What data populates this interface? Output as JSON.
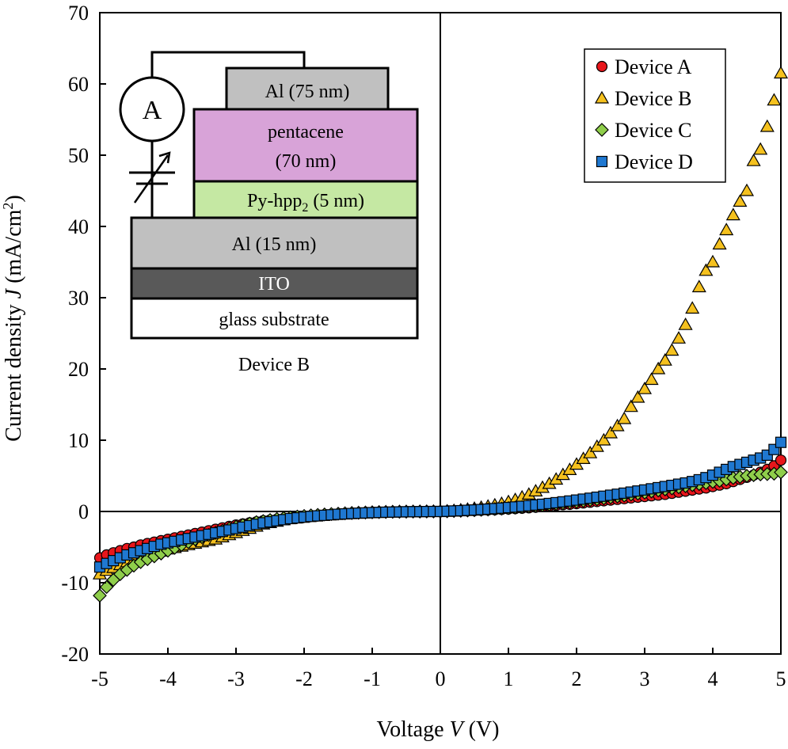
{
  "chart_data": {
    "type": "scatter",
    "xlabel_parts": [
      "Voltage ",
      "V",
      " (V)"
    ],
    "ylabel_parts": [
      "Current density ",
      "J",
      " (mA/cm",
      "2",
      ")"
    ],
    "xlim": [
      -5,
      5
    ],
    "ylim": [
      -20,
      70
    ],
    "xticks": [
      -5,
      -4,
      -3,
      -2,
      -1,
      0,
      1,
      2,
      3,
      4,
      5
    ],
    "yticks": [
      -20,
      -10,
      0,
      10,
      20,
      30,
      40,
      50,
      60,
      70
    ],
    "legend_position": "top-right",
    "series": [
      {
        "name": "Device A",
        "marker": "circle",
        "color": "#e8161b",
        "x": [
          -5,
          -4.9,
          -4.8,
          -4.7,
          -4.6,
          -4.5,
          -4.4,
          -4.3,
          -4.2,
          -4.1,
          -4,
          -3.9,
          -3.8,
          -3.7,
          -3.6,
          -3.5,
          -3.4,
          -3.3,
          -3.2,
          -3.1,
          -3,
          -2.9,
          -2.8,
          -2.7,
          -2.6,
          -2.5,
          -2.4,
          -2.3,
          -2.2,
          -2.1,
          -2,
          -1.9,
          -1.8,
          -1.7,
          -1.6,
          -1.5,
          -1.4,
          -1.3,
          -1.2,
          -1.1,
          -1,
          -0.9,
          -0.8,
          -0.7,
          -0.6,
          -0.5,
          -0.4,
          -0.3,
          -0.2,
          -0.1,
          0,
          0.1,
          0.2,
          0.3,
          0.4,
          0.5,
          0.6,
          0.7,
          0.8,
          0.9,
          1,
          1.1,
          1.2,
          1.3,
          1.4,
          1.5,
          1.6,
          1.7,
          1.8,
          1.9,
          2,
          2.1,
          2.2,
          2.3,
          2.4,
          2.5,
          2.6,
          2.7,
          2.8,
          2.9,
          3,
          3.1,
          3.2,
          3.3,
          3.4,
          3.5,
          3.6,
          3.7,
          3.8,
          3.9,
          4,
          4.1,
          4.2,
          4.3,
          4.4,
          4.5,
          4.6,
          4.7,
          4.8,
          4.9,
          5
        ],
        "y": [
          -6.5,
          -6.1,
          -5.8,
          -5.5,
          -5.2,
          -5,
          -4.7,
          -4.5,
          -4.3,
          -4.1,
          -3.9,
          -3.7,
          -3.5,
          -3.3,
          -3.1,
          -2.9,
          -2.7,
          -2.5,
          -2.3,
          -2.1,
          -1.9,
          -1.75,
          -1.6,
          -1.45,
          -1.3,
          -1.2,
          -1.1,
          -1,
          -0.9,
          -0.8,
          -0.7,
          -0.63,
          -0.56,
          -0.5,
          -0.44,
          -0.38,
          -0.33,
          -0.28,
          -0.24,
          -0.2,
          -0.16,
          -0.13,
          -0.1,
          -0.08,
          -0.06,
          -0.04,
          -0.03,
          -0.02,
          -0.01,
          0,
          0,
          0.02,
          0.04,
          0.07,
          0.1,
          0.13,
          0.17,
          0.21,
          0.25,
          0.3,
          0.35,
          0.4,
          0.46,
          0.52,
          0.6,
          0.68,
          0.76,
          0.85,
          0.95,
          1,
          1.1,
          1.2,
          1.3,
          1.4,
          1.5,
          1.6,
          1.7,
          1.8,
          1.9,
          2,
          2.1,
          2.2,
          2.3,
          2.4,
          2.55,
          2.7,
          2.85,
          3,
          3.15,
          3.3,
          3.5,
          3.7,
          3.9,
          4.2,
          4.5,
          4.8,
          5.1,
          5.5,
          5.9,
          6.4,
          7.2
        ]
      },
      {
        "name": "Device B",
        "marker": "triangle",
        "color": "#f5c11e",
        "x": [
          -5,
          -4.9,
          -4.8,
          -4.7,
          -4.6,
          -4.5,
          -4.4,
          -4.3,
          -4.2,
          -4.1,
          -4,
          -3.9,
          -3.8,
          -3.7,
          -3.6,
          -3.5,
          -3.4,
          -3.3,
          -3.2,
          -3.1,
          -3,
          -2.9,
          -2.8,
          -2.7,
          -2.6,
          -2.5,
          -2.4,
          -2.3,
          -2.2,
          -2.1,
          -2,
          -1.9,
          -1.8,
          -1.7,
          -1.6,
          -1.5,
          -1.4,
          -1.3,
          -1.2,
          -1.1,
          -1,
          -0.9,
          -0.8,
          -0.7,
          -0.6,
          -0.5,
          -0.4,
          -0.3,
          -0.2,
          -0.1,
          0,
          0.1,
          0.2,
          0.3,
          0.4,
          0.5,
          0.6,
          0.7,
          0.8,
          0.9,
          1,
          1.1,
          1.2,
          1.3,
          1.4,
          1.5,
          1.6,
          1.7,
          1.8,
          1.9,
          2,
          2.1,
          2.2,
          2.3,
          2.4,
          2.5,
          2.6,
          2.7,
          2.8,
          2.9,
          3,
          3.1,
          3.2,
          3.3,
          3.4,
          3.5,
          3.6,
          3.7,
          3.8,
          3.9,
          4,
          4.1,
          4.2,
          4.3,
          4.4,
          4.5,
          4.6,
          4.7,
          4.8,
          4.9,
          5
        ],
        "y": [
          -8.8,
          -8.3,
          -7.9,
          -7.5,
          -7.1,
          -6.8,
          -6.5,
          -6.2,
          -5.9,
          -5.6,
          -5.3,
          -5.1,
          -4.9,
          -4.7,
          -4.5,
          -4.3,
          -4.1,
          -3.9,
          -3.6,
          -3.3,
          -3,
          -2.7,
          -2.4,
          -2.1,
          -1.8,
          -1.6,
          -1.4,
          -1.2,
          -1.05,
          -0.9,
          -0.78,
          -0.68,
          -0.58,
          -0.5,
          -0.42,
          -0.36,
          -0.3,
          -0.25,
          -0.21,
          -0.17,
          -0.14,
          -0.11,
          -0.08,
          -0.06,
          -0.04,
          -0.03,
          -0.02,
          -0.01,
          -0.005,
          0,
          0,
          0.05,
          0.12,
          0.2,
          0.3,
          0.42,
          0.56,
          0.72,
          0.9,
          1.1,
          1.35,
          1.65,
          2,
          2.4,
          2.85,
          3.35,
          3.9,
          4.5,
          5.15,
          5.85,
          6.6,
          7.4,
          8.2,
          9.1,
          10,
          11,
          12,
          13,
          14.7,
          16,
          17.2,
          18.5,
          20,
          21.2,
          22.6,
          24.3,
          26.2,
          28.5,
          31.5,
          33.8,
          35,
          37.5,
          39.5,
          41.6,
          43.5,
          45,
          49.2,
          50.8,
          54,
          57.7,
          61.5
        ]
      },
      {
        "name": "Device C",
        "marker": "diamond",
        "color": "#8fce4b",
        "x": [
          -5,
          -4.9,
          -4.8,
          -4.7,
          -4.6,
          -4.5,
          -4.4,
          -4.3,
          -4.2,
          -4.1,
          -4,
          -3.9,
          -3.8,
          -3.7,
          -3.6,
          -3.5,
          -3.4,
          -3.3,
          -3.2,
          -3.1,
          -3,
          -2.9,
          -2.8,
          -2.7,
          -2.6,
          -2.5,
          -2.4,
          -2.3,
          -2.2,
          -2.1,
          -2,
          -1.9,
          -1.8,
          -1.7,
          -1.6,
          -1.5,
          -1.4,
          -1.3,
          -1.2,
          -1.1,
          -1,
          -0.9,
          -0.8,
          -0.7,
          -0.6,
          -0.5,
          -0.4,
          -0.3,
          -0.2,
          -0.1,
          0,
          0.1,
          0.2,
          0.3,
          0.4,
          0.5,
          0.6,
          0.7,
          0.8,
          0.9,
          1,
          1.1,
          1.2,
          1.3,
          1.4,
          1.5,
          1.6,
          1.7,
          1.8,
          1.9,
          2,
          2.1,
          2.2,
          2.3,
          2.4,
          2.5,
          2.6,
          2.7,
          2.8,
          2.9,
          3,
          3.1,
          3.2,
          3.3,
          3.4,
          3.5,
          3.6,
          3.7,
          3.8,
          3.9,
          4,
          4.1,
          4.2,
          4.3,
          4.4,
          4.5,
          4.6,
          4.7,
          4.8,
          4.9,
          5
        ],
        "y": [
          -11.8,
          -10.6,
          -9.6,
          -8.8,
          -8.2,
          -7.6,
          -7.1,
          -6.7,
          -6.3,
          -5.9,
          -5.5,
          -5.1,
          -4.7,
          -4.3,
          -3.9,
          -3.6,
          -3.3,
          -3,
          -2.7,
          -2.4,
          -2.15,
          -1.9,
          -1.7,
          -1.5,
          -1.35,
          -1.2,
          -1.05,
          -0.92,
          -0.82,
          -0.72,
          -0.63,
          -0.55,
          -0.48,
          -0.42,
          -0.36,
          -0.31,
          -0.26,
          -0.22,
          -0.18,
          -0.15,
          -0.12,
          -0.09,
          -0.07,
          -0.05,
          -0.04,
          -0.03,
          -0.02,
          -0.01,
          0,
          0,
          0,
          0.03,
          0.06,
          0.1,
          0.14,
          0.18,
          0.23,
          0.28,
          0.34,
          0.4,
          0.47,
          0.54,
          0.62,
          0.7,
          0.78,
          0.87,
          0.96,
          1.06,
          1.16,
          1.26,
          1.37,
          1.48,
          1.6,
          1.72,
          1.84,
          1.97,
          2.1,
          2.23,
          2.37,
          2.51,
          2.65,
          2.8,
          2.95,
          3.1,
          3.25,
          3.4,
          3.55,
          3.7,
          3.85,
          4,
          4.15,
          4.3,
          4.5,
          4.7,
          4.85,
          5,
          5.1,
          5.2,
          5.25,
          5.3,
          5.5
        ]
      },
      {
        "name": "Device D",
        "marker": "square",
        "color": "#1f78d1",
        "x": [
          -5,
          -4.9,
          -4.8,
          -4.7,
          -4.6,
          -4.5,
          -4.4,
          -4.3,
          -4.2,
          -4.1,
          -4,
          -3.9,
          -3.8,
          -3.7,
          -3.6,
          -3.5,
          -3.4,
          -3.3,
          -3.2,
          -3.1,
          -3,
          -2.9,
          -2.8,
          -2.7,
          -2.6,
          -2.5,
          -2.4,
          -2.3,
          -2.2,
          -2.1,
          -2,
          -1.9,
          -1.8,
          -1.7,
          -1.6,
          -1.5,
          -1.4,
          -1.3,
          -1.2,
          -1.1,
          -1,
          -0.9,
          -0.8,
          -0.7,
          -0.6,
          -0.5,
          -0.4,
          -0.3,
          -0.2,
          -0.1,
          0,
          0.1,
          0.2,
          0.3,
          0.4,
          0.5,
          0.6,
          0.7,
          0.8,
          0.9,
          1,
          1.1,
          1.2,
          1.3,
          1.4,
          1.5,
          1.6,
          1.7,
          1.8,
          1.9,
          2,
          2.1,
          2.2,
          2.3,
          2.4,
          2.5,
          2.6,
          2.7,
          2.8,
          2.9,
          3,
          3.1,
          3.2,
          3.3,
          3.4,
          3.5,
          3.6,
          3.7,
          3.8,
          3.9,
          4,
          4.1,
          4.2,
          4.3,
          4.4,
          4.5,
          4.6,
          4.7,
          4.8,
          4.9,
          5
        ],
        "y": [
          -7.8,
          -7.3,
          -6.9,
          -6.5,
          -6.1,
          -5.8,
          -5.5,
          -5.2,
          -4.9,
          -4.6,
          -4.4,
          -4.2,
          -4,
          -3.8,
          -3.6,
          -3.4,
          -3.2,
          -3,
          -2.8,
          -2.6,
          -2.4,
          -2.2,
          -2,
          -1.8,
          -1.6,
          -1.45,
          -1.3,
          -1.15,
          -1,
          -0.9,
          -0.8,
          -0.7,
          -0.62,
          -0.54,
          -0.47,
          -0.4,
          -0.34,
          -0.29,
          -0.24,
          -0.2,
          -0.16,
          -0.13,
          -0.1,
          -0.08,
          -0.06,
          -0.04,
          -0.03,
          -0.02,
          -0.01,
          0,
          0,
          0.03,
          0.07,
          0.11,
          0.16,
          0.21,
          0.27,
          0.33,
          0.4,
          0.47,
          0.55,
          0.63,
          0.72,
          0.81,
          0.91,
          1.01,
          1.12,
          1.23,
          1.35,
          1.47,
          1.6,
          1.73,
          1.86,
          2,
          2.14,
          2.28,
          2.42,
          2.57,
          2.72,
          2.87,
          3.02,
          3.18,
          3.34,
          3.5,
          3.66,
          3.83,
          4,
          4.2,
          4.45,
          4.75,
          5.1,
          5.5,
          5.9,
          6.3,
          6.6,
          6.9,
          7.2,
          7.5,
          7.9,
          8.7,
          9.7
        ]
      }
    ]
  },
  "inset": {
    "ammeter_label": "A",
    "layers": [
      {
        "label": "Al (75 nm)"
      },
      {
        "label_lines": [
          "pentacene",
          "(70 nm)"
        ]
      },
      {
        "label_main": "Py-hpp",
        "label_sub": "2",
        "label_tail": " (5 nm)"
      },
      {
        "label": "Al (15 nm)"
      },
      {
        "label": "ITO"
      },
      {
        "label": "glass substrate"
      }
    ],
    "caption": "Device B"
  }
}
